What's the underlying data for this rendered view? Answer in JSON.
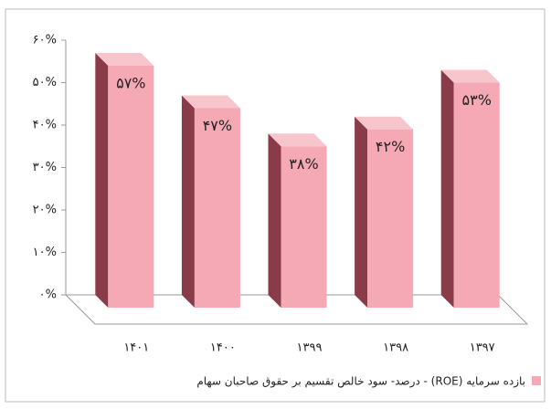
{
  "chart_data": {
    "type": "bar3d",
    "categories": [
      "۱۴۰۱",
      "۱۴۰۰",
      "۱۳۹۹",
      "۱۳۹۸",
      "۱۳۹۷"
    ],
    "series": [
      {
        "name": "بازده سرمایه (ROE) - درصد- سود خالص تقسیم بر حقوق صاحبان سهام",
        "color": "#f4a9b4",
        "values": [
          57,
          47,
          38,
          42,
          53
        ],
        "value_labels": [
          "۵۷%",
          "۴۷%",
          "۳۸%",
          "۴۲%",
          "۵۳%"
        ]
      }
    ],
    "ylim": [
      0,
      60
    ],
    "yticks": [
      {
        "value": 0,
        "label": "۰%"
      },
      {
        "value": 10,
        "label": "۱۰%"
      },
      {
        "value": 20,
        "label": "۲۰%"
      },
      {
        "value": 30,
        "label": "۳۰%"
      },
      {
        "value": 40,
        "label": "۴۰%"
      },
      {
        "value": 50,
        "label": "۵۰%"
      },
      {
        "value": 60,
        "label": "۶۰%"
      }
    ],
    "legend": "bottom"
  }
}
